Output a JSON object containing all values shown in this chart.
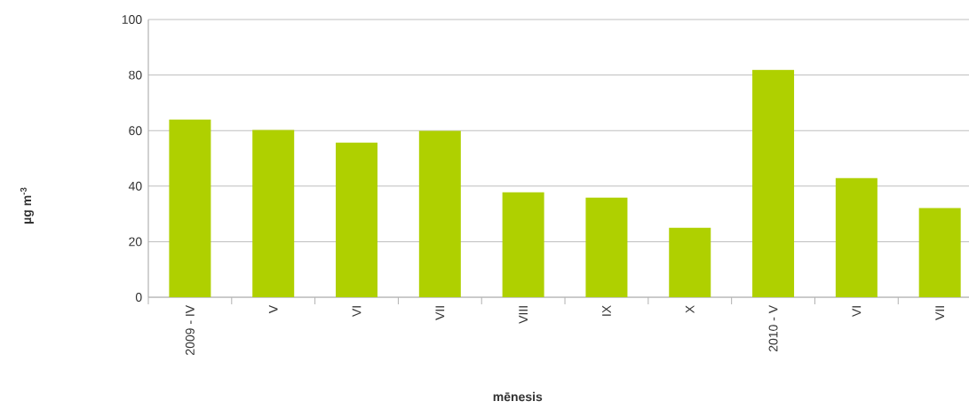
{
  "chart_data": {
    "type": "bar",
    "xlabel": "**mēnesis**",
    "ylabel": "**µg m$^{-3}$**",
    "categories": [
      "2009 - IV",
      "V",
      "VI",
      "VII",
      "VIII",
      "IX",
      "X",
      "2010 - V",
      "VI",
      "VII"
    ],
    "values": [
      64.0,
      60.2,
      55.7,
      59.9,
      37.8,
      35.9,
      25.0,
      81.9,
      42.9,
      32.1
    ],
    "color": "#afd000",
    "ylim": [
      0,
      100
    ],
    "yticks": [
      0,
      20,
      40,
      60,
      80,
      100
    ],
    "grid": "y"
  }
}
